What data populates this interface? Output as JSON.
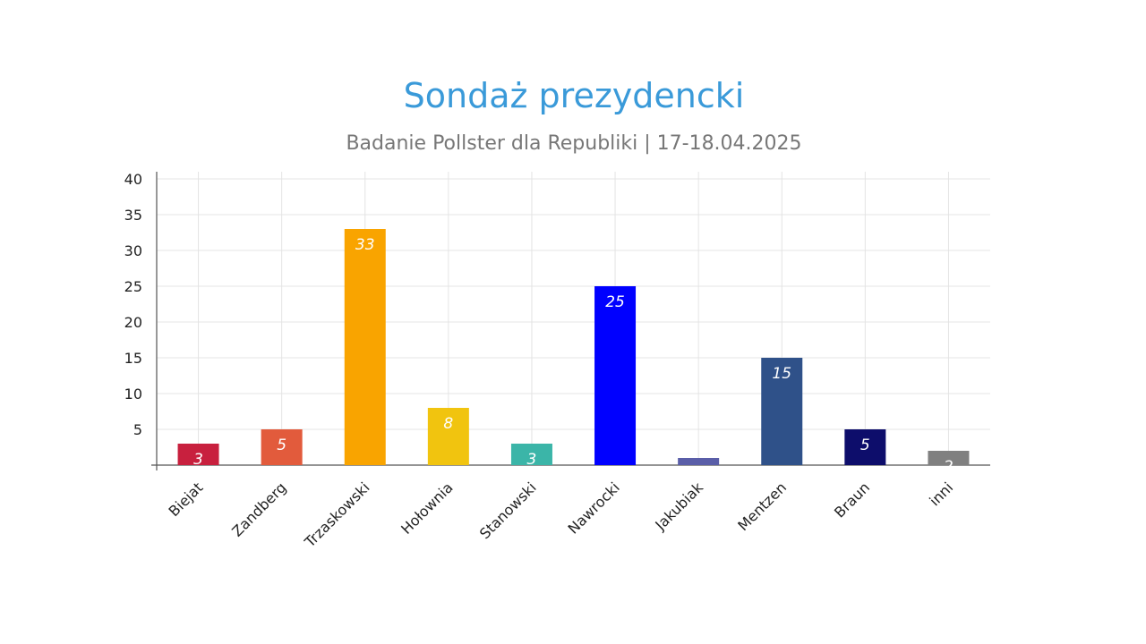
{
  "chart_data": {
    "type": "bar",
    "title": "Sondaż prezydencki",
    "subtitle": "Badanie Pollster dla Republiki | 17-18.04.2025",
    "xlabel": "",
    "ylabel": "",
    "ylim": [
      0,
      40
    ],
    "yticks": [
      5,
      10,
      15,
      20,
      25,
      30,
      35,
      40
    ],
    "grid": true,
    "categories": [
      "Biejat",
      "Zandberg",
      "Trzaskowski",
      "Hołownia",
      "Stanowski",
      "Nawrocki",
      "Jakubiak",
      "Mentzen",
      "Braun",
      "inni"
    ],
    "values": [
      3,
      5,
      33,
      8,
      3,
      25,
      1,
      15,
      5,
      2
    ],
    "data_labels": [
      "3",
      "5",
      "33",
      "8",
      "3",
      "25",
      "",
      "15",
      "5",
      "2"
    ],
    "colors": [
      "#c8203e",
      "#e25b3c",
      "#f9a400",
      "#f1c40f",
      "#3bb5a8",
      "#0000ff",
      "#5a5ea8",
      "#2f5189",
      "#0d0d6b",
      "#808080"
    ]
  }
}
